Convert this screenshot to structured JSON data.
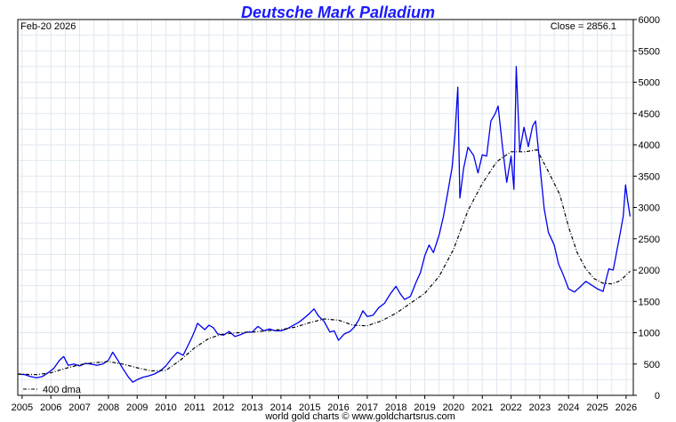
{
  "chart_data": {
    "type": "line",
    "title": "Deutsche Mark Palladium",
    "date_label": "Feb-20  2026",
    "close_label": "Close = 2856.1",
    "legend_label": "400 dma",
    "footer": "world gold charts © www.goldchartsrus.com",
    "xlim": [
      2004.85,
      2026.25
    ],
    "ylim": [
      0,
      6000
    ],
    "x_ticks": [
      2005,
      2006,
      2007,
      2008,
      2009,
      2010,
      2011,
      2012,
      2013,
      2014,
      2015,
      2016,
      2017,
      2018,
      2019,
      2020,
      2021,
      2022,
      2023,
      2024,
      2025,
      2026
    ],
    "x_tick_labels": [
      "2005",
      "2006",
      "2007",
      "2008",
      "2009",
      "2010",
      "2011",
      "2012",
      "2013",
      "2014",
      "2015",
      "2016",
      "2017",
      "2018",
      "2019",
      "2020",
      "2021",
      "2022",
      "2023",
      "2024",
      "2025",
      "2026"
    ],
    "y_ticks": [
      0,
      500,
      1000,
      1500,
      2000,
      2500,
      3000,
      3500,
      4000,
      4500,
      5000,
      5500,
      6000
    ],
    "y_tick_labels": [
      "0",
      "500",
      "1000",
      "1500",
      "2000",
      "2500",
      "3000",
      "3500",
      "4000",
      "4500",
      "5000",
      "5500",
      "6000"
    ],
    "grid": true,
    "series": [
      {
        "name": "",
        "color": "#0000ee",
        "style": "solid",
        "points": [
          [
            2004.85,
            340
          ],
          [
            2005.1,
            330
          ],
          [
            2005.3,
            300
          ],
          [
            2005.5,
            280
          ],
          [
            2005.7,
            300
          ],
          [
            2005.9,
            360
          ],
          [
            2006.1,
            430
          ],
          [
            2006.3,
            560
          ],
          [
            2006.45,
            620
          ],
          [
            2006.6,
            480
          ],
          [
            2006.8,
            500
          ],
          [
            2007.0,
            470
          ],
          [
            2007.2,
            510
          ],
          [
            2007.4,
            500
          ],
          [
            2007.6,
            480
          ],
          [
            2007.8,
            500
          ],
          [
            2008.0,
            560
          ],
          [
            2008.15,
            690
          ],
          [
            2008.3,
            580
          ],
          [
            2008.5,
            430
          ],
          [
            2008.7,
            290
          ],
          [
            2008.85,
            210
          ],
          [
            2009.0,
            250
          ],
          [
            2009.2,
            290
          ],
          [
            2009.4,
            310
          ],
          [
            2009.6,
            340
          ],
          [
            2009.8,
            390
          ],
          [
            2010.0,
            470
          ],
          [
            2010.2,
            590
          ],
          [
            2010.4,
            690
          ],
          [
            2010.6,
            640
          ],
          [
            2010.75,
            780
          ],
          [
            2010.9,
            920
          ],
          [
            2011.0,
            1030
          ],
          [
            2011.1,
            1150
          ],
          [
            2011.2,
            1110
          ],
          [
            2011.35,
            1050
          ],
          [
            2011.5,
            1120
          ],
          [
            2011.65,
            1080
          ],
          [
            2011.8,
            980
          ],
          [
            2012.0,
            960
          ],
          [
            2012.2,
            1020
          ],
          [
            2012.4,
            940
          ],
          [
            2012.6,
            970
          ],
          [
            2012.8,
            1010
          ],
          [
            2013.0,
            1010
          ],
          [
            2013.2,
            1100
          ],
          [
            2013.4,
            1030
          ],
          [
            2013.6,
            1060
          ],
          [
            2013.8,
            1030
          ],
          [
            2014.0,
            1030
          ],
          [
            2014.2,
            1060
          ],
          [
            2014.4,
            1110
          ],
          [
            2014.6,
            1160
          ],
          [
            2014.8,
            1230
          ],
          [
            2015.0,
            1310
          ],
          [
            2015.15,
            1380
          ],
          [
            2015.3,
            1270
          ],
          [
            2015.5,
            1180
          ],
          [
            2015.7,
            1010
          ],
          [
            2015.85,
            1030
          ],
          [
            2016.0,
            880
          ],
          [
            2016.2,
            980
          ],
          [
            2016.4,
            1020
          ],
          [
            2016.55,
            1090
          ],
          [
            2016.7,
            1200
          ],
          [
            2016.85,
            1350
          ],
          [
            2017.0,
            1260
          ],
          [
            2017.2,
            1280
          ],
          [
            2017.4,
            1400
          ],
          [
            2017.6,
            1470
          ],
          [
            2017.8,
            1620
          ],
          [
            2018.0,
            1740
          ],
          [
            2018.15,
            1620
          ],
          [
            2018.3,
            1530
          ],
          [
            2018.5,
            1580
          ],
          [
            2018.7,
            1810
          ],
          [
            2018.85,
            1960
          ],
          [
            2019.0,
            2230
          ],
          [
            2019.15,
            2400
          ],
          [
            2019.3,
            2280
          ],
          [
            2019.5,
            2560
          ],
          [
            2019.65,
            2860
          ],
          [
            2019.8,
            3240
          ],
          [
            2019.95,
            3640
          ],
          [
            2020.05,
            4160
          ],
          [
            2020.15,
            4920
          ],
          [
            2020.22,
            3150
          ],
          [
            2020.35,
            3620
          ],
          [
            2020.5,
            3960
          ],
          [
            2020.7,
            3830
          ],
          [
            2020.85,
            3550
          ],
          [
            2021.0,
            3840
          ],
          [
            2021.15,
            3820
          ],
          [
            2021.3,
            4380
          ],
          [
            2021.45,
            4500
          ],
          [
            2021.55,
            4620
          ],
          [
            2021.7,
            3970
          ],
          [
            2021.85,
            3400
          ],
          [
            2022.0,
            3820
          ],
          [
            2022.1,
            3290
          ],
          [
            2022.18,
            5250
          ],
          [
            2022.3,
            3900
          ],
          [
            2022.45,
            4280
          ],
          [
            2022.6,
            3970
          ],
          [
            2022.75,
            4300
          ],
          [
            2022.85,
            4380
          ],
          [
            2023.0,
            3690
          ],
          [
            2023.15,
            2980
          ],
          [
            2023.3,
            2600
          ],
          [
            2023.5,
            2400
          ],
          [
            2023.65,
            2100
          ],
          [
            2023.8,
            1940
          ],
          [
            2024.0,
            1700
          ],
          [
            2024.2,
            1650
          ],
          [
            2024.4,
            1730
          ],
          [
            2024.6,
            1820
          ],
          [
            2024.8,
            1760
          ],
          [
            2025.0,
            1700
          ],
          [
            2025.2,
            1660
          ],
          [
            2025.4,
            2020
          ],
          [
            2025.55,
            2000
          ],
          [
            2025.7,
            2360
          ],
          [
            2025.8,
            2600
          ],
          [
            2025.9,
            2860
          ],
          [
            2025.98,
            3360
          ],
          [
            2026.05,
            3120
          ],
          [
            2026.14,
            2856.1
          ]
        ]
      },
      {
        "name": "400 dma",
        "color": "#000000",
        "style": "dashdot",
        "points": [
          [
            2004.85,
            340
          ],
          [
            2005.5,
            330
          ],
          [
            2006.0,
            360
          ],
          [
            2006.5,
            430
          ],
          [
            2007.0,
            490
          ],
          [
            2007.5,
            520
          ],
          [
            2008.0,
            540
          ],
          [
            2008.5,
            500
          ],
          [
            2009.0,
            440
          ],
          [
            2009.5,
            390
          ],
          [
            2010.0,
            400
          ],
          [
            2010.5,
            560
          ],
          [
            2011.0,
            760
          ],
          [
            2011.5,
            910
          ],
          [
            2012.0,
            980
          ],
          [
            2012.5,
            1000
          ],
          [
            2013.0,
            1010
          ],
          [
            2013.5,
            1030
          ],
          [
            2014.0,
            1050
          ],
          [
            2014.5,
            1090
          ],
          [
            2015.0,
            1160
          ],
          [
            2015.5,
            1220
          ],
          [
            2016.0,
            1200
          ],
          [
            2016.5,
            1120
          ],
          [
            2017.0,
            1110
          ],
          [
            2017.5,
            1190
          ],
          [
            2018.0,
            1310
          ],
          [
            2018.5,
            1470
          ],
          [
            2019.0,
            1630
          ],
          [
            2019.5,
            1900
          ],
          [
            2020.0,
            2330
          ],
          [
            2020.5,
            2950
          ],
          [
            2021.0,
            3380
          ],
          [
            2021.5,
            3730
          ],
          [
            2022.0,
            3890
          ],
          [
            2022.5,
            3890
          ],
          [
            2022.9,
            3920
          ],
          [
            2023.3,
            3570
          ],
          [
            2023.7,
            3200
          ],
          [
            2024.0,
            2690
          ],
          [
            2024.3,
            2280
          ],
          [
            2024.6,
            2020
          ],
          [
            2024.9,
            1860
          ],
          [
            2025.2,
            1790
          ],
          [
            2025.5,
            1780
          ],
          [
            2025.8,
            1830
          ],
          [
            2026.14,
            1980
          ]
        ]
      }
    ]
  }
}
